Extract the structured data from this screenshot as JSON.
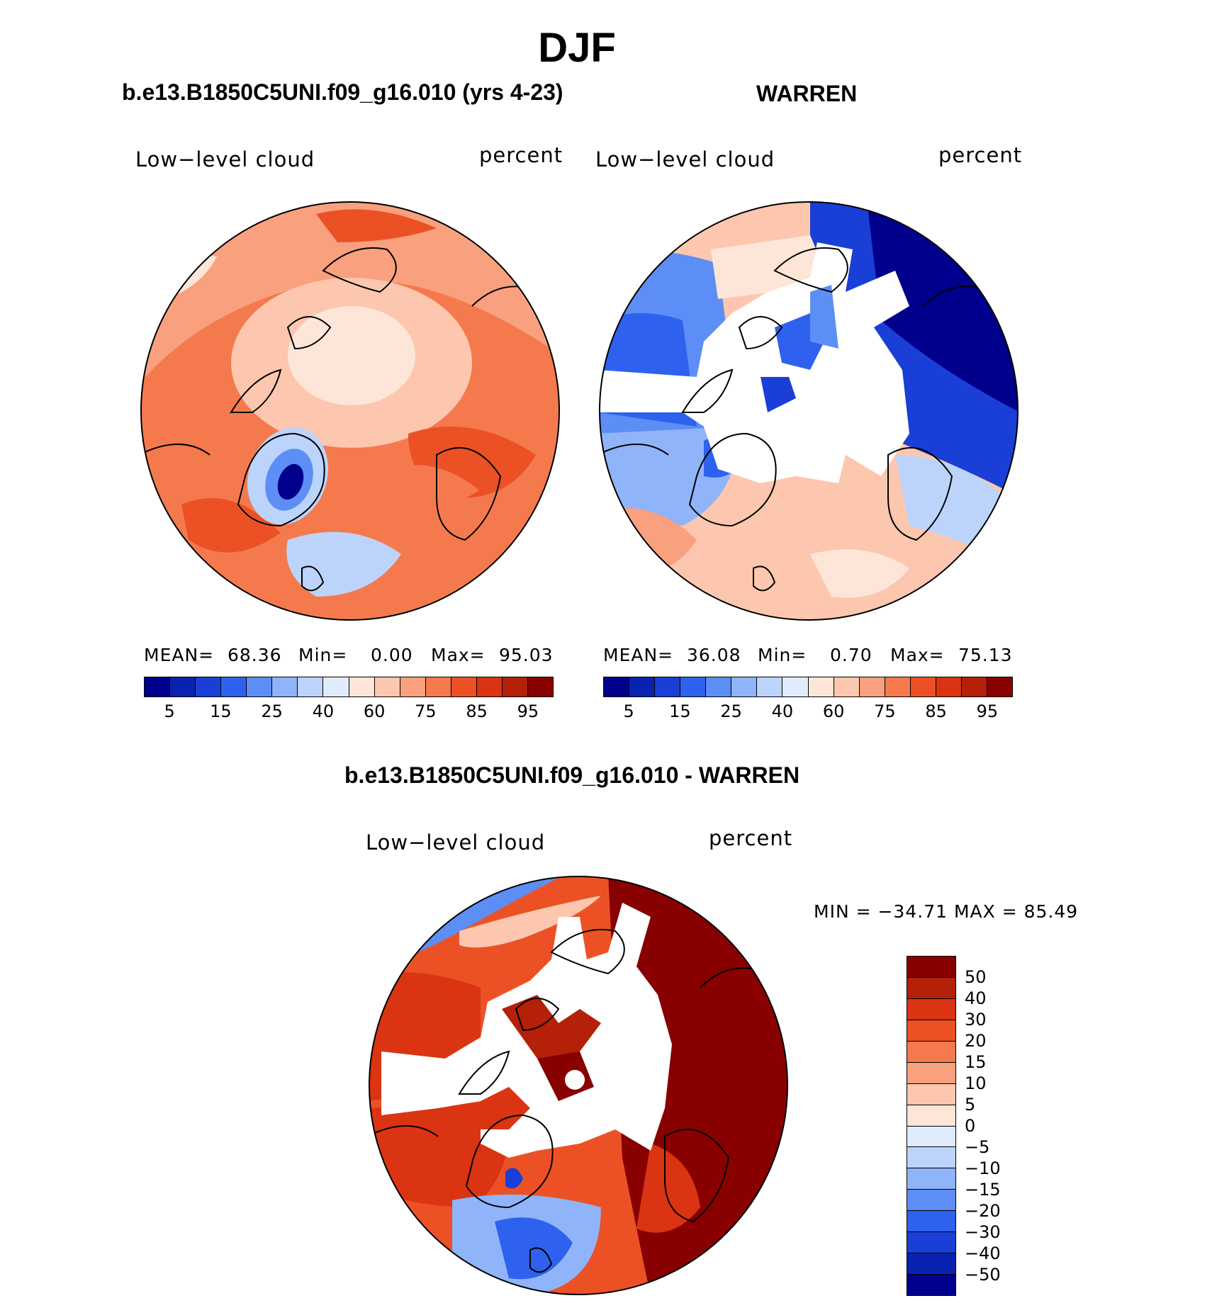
{
  "figure": {
    "title": "DJF"
  },
  "panels": {
    "model": {
      "title": "b.e13.B1850C5UNI.f09_g16.010 (yrs 4-23)",
      "variable": "Low−level cloud",
      "units": "percent",
      "mean_label": "MEAN=",
      "mean_value": "68.36",
      "min_label": "Min=",
      "min_value": "0.00",
      "max_label": "Max=",
      "max_value": "95.03"
    },
    "obs": {
      "title": "WARREN",
      "variable": "Low−level cloud",
      "units": "percent",
      "mean_label": "MEAN=",
      "mean_value": "36.08",
      "min_label": "Min=",
      "min_value": "0.70",
      "max_label": "Max=",
      "max_value": "75.13"
    },
    "diff": {
      "title": "b.e13.B1850C5UNI.f09_g16.010 - WARREN",
      "variable": "Low−level cloud",
      "units": "percent",
      "minmax": "MIN = −34.71 MAX =  85.49"
    }
  },
  "colorbars": {
    "seq_ticks": [
      "5",
      "15",
      "25",
      "40",
      "60",
      "75",
      "85",
      "95"
    ],
    "seq_colors": [
      "#00008c",
      "#0a22b0",
      "#1a3fd6",
      "#2e62ee",
      "#5c8ef6",
      "#8fb4fa",
      "#bcd4fc",
      "#e0ecfe",
      "#fde6d8",
      "#fcc7ae",
      "#f9a07e",
      "#f47a4e",
      "#ec5126",
      "#da3412",
      "#b52008",
      "#880000"
    ],
    "diff_ticks": [
      "50",
      "40",
      "30",
      "20",
      "15",
      "10",
      "5",
      "0",
      "−5",
      "−10",
      "−15",
      "−20",
      "−30",
      "−40",
      "−50"
    ],
    "diff_colors": [
      "#880000",
      "#b52008",
      "#da3412",
      "#ec5126",
      "#f47a4e",
      "#f9a07e",
      "#fcc7ae",
      "#fde6d8",
      "#e0ecfe",
      "#bcd4fc",
      "#8fb4fa",
      "#5c8ef6",
      "#2e62ee",
      "#1a3fd6",
      "#0a22b0",
      "#00008c"
    ]
  }
}
